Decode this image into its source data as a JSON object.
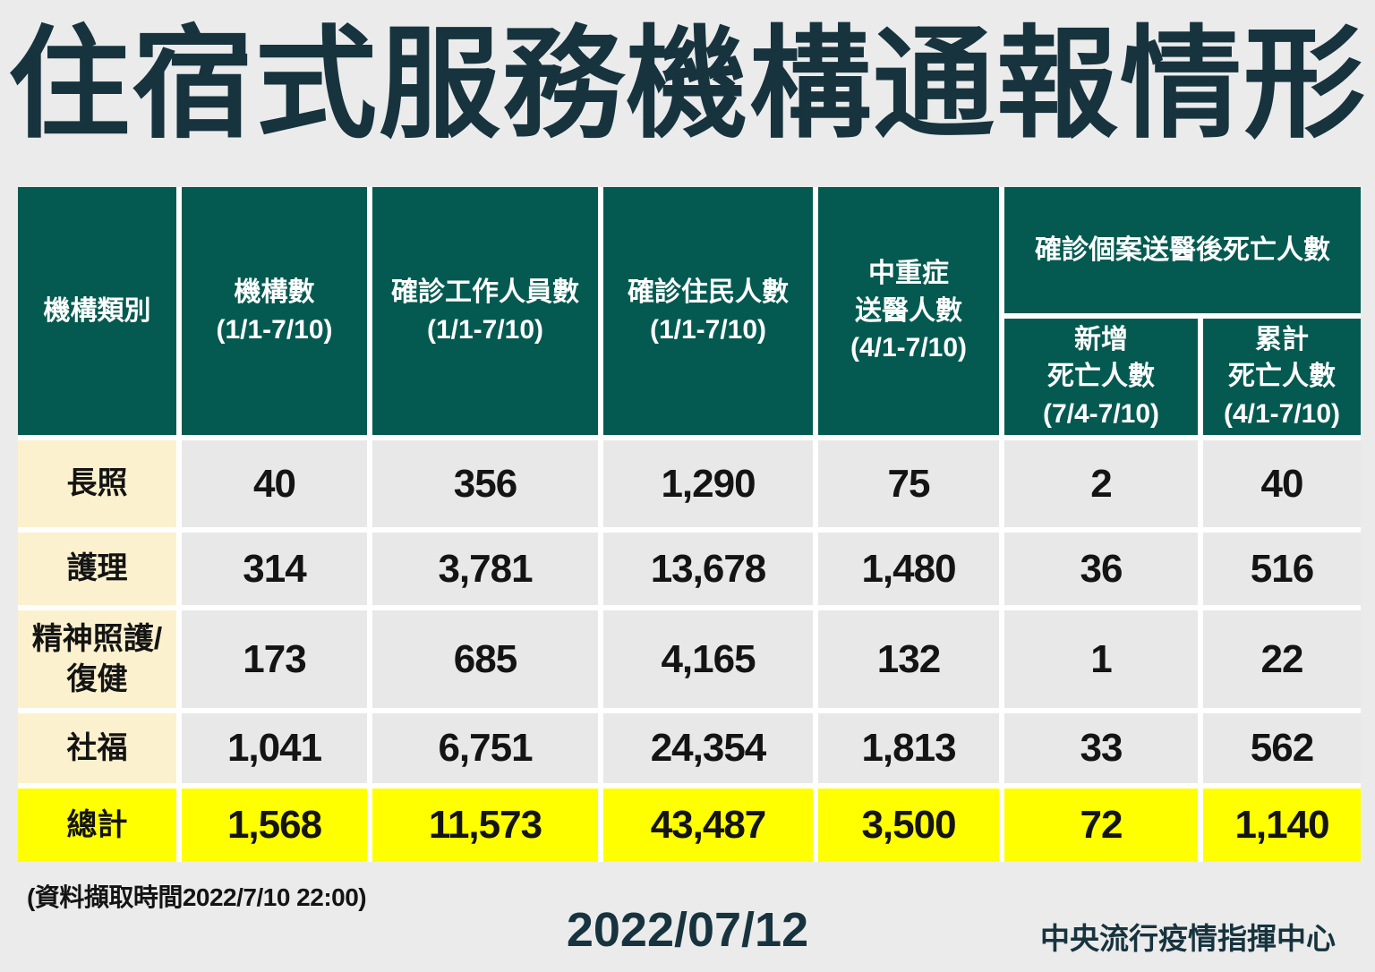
{
  "title": "住宿式服務機構通報情形",
  "colors": {
    "header_green": "#045a50",
    "category_cream": "#fcf1ce",
    "cell_gray": "#e8e8e8",
    "total_yellow": "#ffff00",
    "title_teal": "#17333e",
    "page_background": "#ebebeb"
  },
  "table": {
    "category_header": "機構類別",
    "col_headers": [
      {
        "label": "機構數",
        "period": "(1/1-7/10)"
      },
      {
        "label": "確診工作人員數",
        "period": "(1/1-7/10)"
      },
      {
        "label": "確診住民人數",
        "period": "(1/1-7/10)"
      },
      {
        "label": "中重症\n送醫人數",
        "period": "(4/1-7/10)"
      }
    ],
    "death_group": {
      "label": "確診個案送醫後死亡人數",
      "sub_headers": [
        {
          "label": "新增\n死亡人數",
          "period": "(7/4-7/10)"
        },
        {
          "label": "累計\n死亡人數",
          "period": "(4/1-7/10)"
        }
      ]
    },
    "rows": [
      {
        "category": "長照",
        "values": [
          "40",
          "356",
          "1,290",
          "75",
          "2",
          "40"
        ]
      },
      {
        "category": "護理",
        "values": [
          "314",
          "3,781",
          "13,678",
          "1,480",
          "36",
          "516"
        ]
      },
      {
        "category": "精神照護/\n復健",
        "values": [
          "173",
          "685",
          "4,165",
          "132",
          "1",
          "22"
        ]
      },
      {
        "category": "社福",
        "values": [
          "1,041",
          "6,751",
          "24,354",
          "1,813",
          "33",
          "562"
        ]
      }
    ],
    "total": {
      "category": "總計",
      "values": [
        "1,568",
        "11,573",
        "43,487",
        "3,500",
        "72",
        "1,140"
      ]
    }
  },
  "footer": {
    "note": "(資料擷取時間2022/7/10 22:00)",
    "date": "2022/07/12",
    "source": "中央流行疫情指揮中心"
  },
  "chart_data": {
    "type": "table",
    "title": "住宿式服務機構通報情形",
    "columns": [
      "機構類別",
      "機構數(1/1-7/10)",
      "確診工作人員數(1/1-7/10)",
      "確診住民人數(1/1-7/10)",
      "中重症送醫人數(4/1-7/10)",
      "新增死亡人數(7/4-7/10)",
      "累計死亡人數(4/1-7/10)"
    ],
    "column_group": {
      "label": "確診個案送醫後死亡人數",
      "spans": [
        "新增死亡人數(7/4-7/10)",
        "累計死亡人數(4/1-7/10)"
      ]
    },
    "rows": [
      [
        "長照",
        40,
        356,
        1290,
        75,
        2,
        40
      ],
      [
        "護理",
        314,
        3781,
        13678,
        1480,
        36,
        516
      ],
      [
        "精神照護/復健",
        173,
        685,
        4165,
        132,
        1,
        22
      ],
      [
        "社福",
        1041,
        6751,
        24354,
        1813,
        33,
        562
      ],
      [
        "總計",
        1568,
        11573,
        43487,
        3500,
        72,
        1140
      ]
    ],
    "note": "(資料擷取時間2022/7/10 22:00)",
    "date": "2022/07/12",
    "source": "中央流行疫情指揮中心"
  }
}
